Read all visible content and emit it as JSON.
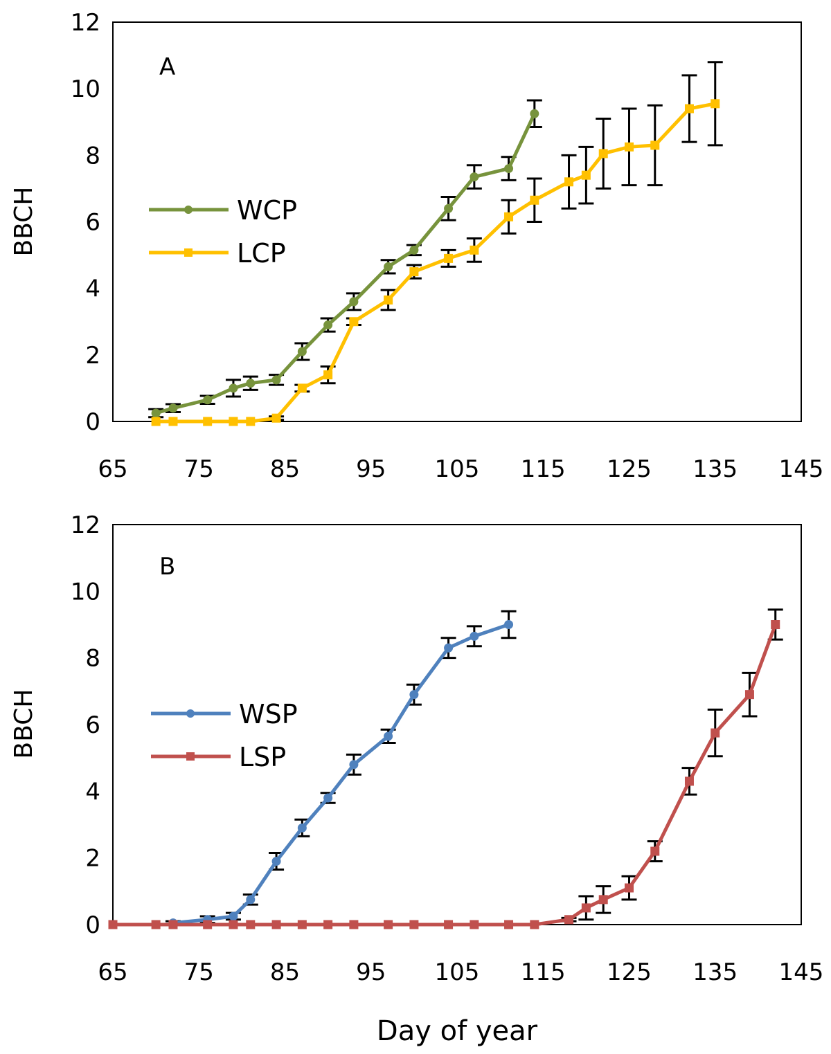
{
  "chart_data": [
    {
      "type": "line",
      "panel_label": "A",
      "ylabel": "BBCH",
      "xlim": [
        65,
        145
      ],
      "ylim": [
        0,
        12
      ],
      "x_ticks": [
        "65",
        "75",
        "85",
        "95",
        "105",
        "115",
        "125",
        "135",
        "145"
      ],
      "y_ticks": [
        "0",
        "2",
        "4",
        "6",
        "8",
        "10",
        "12"
      ],
      "legend_position": "middle-left",
      "series": [
        {
          "name": "WCP",
          "color": "#77933c",
          "marker": "circle",
          "x": [
            70,
            72,
            76,
            79,
            81,
            84,
            87,
            90,
            93,
            97,
            100,
            104,
            107,
            111,
            114
          ],
          "y": [
            0.25,
            0.4,
            0.65,
            1.0,
            1.15,
            1.25,
            2.1,
            2.9,
            3.6,
            4.65,
            5.15,
            6.4,
            7.35,
            7.6,
            9.25
          ],
          "err": [
            0.12,
            0.12,
            0.12,
            0.25,
            0.2,
            0.15,
            0.25,
            0.2,
            0.25,
            0.2,
            0.15,
            0.35,
            0.35,
            0.35,
            0.4
          ]
        },
        {
          "name": "LCP",
          "color": "#ffc000",
          "marker": "square",
          "x": [
            70,
            72,
            76,
            79,
            81,
            84,
            87,
            90,
            93,
            97,
            100,
            104,
            107,
            111,
            114,
            118,
            120,
            122,
            125,
            128,
            132,
            135
          ],
          "y": [
            0,
            0,
            0,
            0,
            0,
            0.1,
            1.0,
            1.4,
            3.0,
            3.65,
            4.5,
            4.9,
            5.15,
            6.15,
            6.65,
            7.2,
            7.4,
            8.05,
            8.25,
            8.3,
            9.4,
            9.55
          ],
          "err": [
            0,
            0,
            0,
            0,
            0,
            0.05,
            0.1,
            0.25,
            0.1,
            0.3,
            0.2,
            0.25,
            0.35,
            0.5,
            0.65,
            0.8,
            0.85,
            1.05,
            1.15,
            1.2,
            1.0,
            1.25
          ]
        }
      ]
    },
    {
      "type": "line",
      "panel_label": "B",
      "ylabel": "BBCH",
      "xlabel": "Day of year",
      "xlim": [
        65,
        145
      ],
      "ylim": [
        0,
        12
      ],
      "x_ticks": [
        "65",
        "75",
        "85",
        "95",
        "105",
        "115",
        "125",
        "135",
        "145"
      ],
      "y_ticks": [
        "0",
        "2",
        "4",
        "6",
        "8",
        "10",
        "12"
      ],
      "legend_position": "middle-left",
      "series": [
        {
          "name": "WSP",
          "color": "#4f81bd",
          "marker": "circle",
          "x": [
            72,
            76,
            79,
            81,
            84,
            87,
            90,
            93,
            97,
            100,
            104,
            107,
            111
          ],
          "y": [
            0.05,
            0.15,
            0.25,
            0.75,
            1.9,
            2.9,
            3.8,
            4.8,
            5.65,
            6.9,
            8.3,
            8.65,
            9.0
          ],
          "err": [
            0.05,
            0.1,
            0.1,
            0.15,
            0.25,
            0.25,
            0.15,
            0.3,
            0.2,
            0.3,
            0.3,
            0.3,
            0.4
          ]
        },
        {
          "name": "LSP",
          "color": "#c0504d",
          "marker": "square",
          "x": [
            65,
            70,
            72,
            76,
            79,
            81,
            84,
            87,
            90,
            93,
            97,
            100,
            104,
            107,
            111,
            114,
            118,
            120,
            122,
            125,
            128,
            132,
            135,
            139,
            142
          ],
          "y": [
            0,
            0,
            0,
            0,
            0,
            0,
            0,
            0,
            0,
            0,
            0,
            0,
            0,
            0,
            0,
            0,
            0.15,
            0.5,
            0.75,
            1.1,
            2.2,
            4.3,
            5.75,
            6.9,
            9.0
          ],
          "err": [
            0,
            0,
            0,
            0,
            0,
            0,
            0,
            0,
            0,
            0,
            0,
            0,
            0,
            0,
            0,
            0,
            0.05,
            0.35,
            0.4,
            0.35,
            0.3,
            0.4,
            0.7,
            0.65,
            0.45
          ]
        }
      ]
    }
  ]
}
